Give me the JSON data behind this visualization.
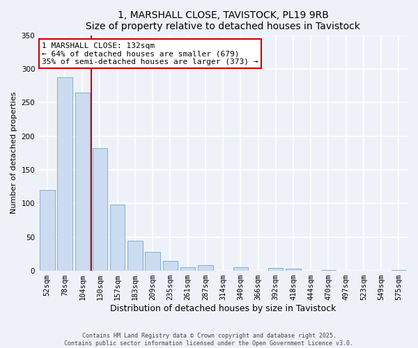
{
  "title": "1, MARSHALL CLOSE, TAVISTOCK, PL19 9RB",
  "subtitle": "Size of property relative to detached houses in Tavistock",
  "xlabel": "Distribution of detached houses by size in Tavistock",
  "ylabel": "Number of detached properties",
  "bin_labels": [
    "52sqm",
    "78sqm",
    "104sqm",
    "130sqm",
    "157sqm",
    "183sqm",
    "209sqm",
    "235sqm",
    "261sqm",
    "287sqm",
    "314sqm",
    "340sqm",
    "366sqm",
    "392sqm",
    "418sqm",
    "444sqm",
    "470sqm",
    "497sqm",
    "523sqm",
    "549sqm",
    "575sqm"
  ],
  "bar_values": [
    120,
    287,
    265,
    182,
    98,
    45,
    28,
    15,
    5,
    8,
    0,
    5,
    0,
    4,
    3,
    0,
    1,
    0,
    0,
    0,
    1
  ],
  "bar_color": "#ccdcf0",
  "bar_edge_color": "#8ab4d8",
  "vline_x_idx": 3,
  "vline_color": "#cc0000",
  "annotation_title": "1 MARSHALL CLOSE: 132sqm",
  "annotation_line1": "← 64% of detached houses are smaller (679)",
  "annotation_line2": "35% of semi-detached houses are larger (373) →",
  "annotation_box_facecolor": "#ffffff",
  "annotation_box_edgecolor": "#cc0000",
  "ylim": [
    0,
    350
  ],
  "yticks": [
    0,
    50,
    100,
    150,
    200,
    250,
    300,
    350
  ],
  "footer1": "Contains HM Land Registry data © Crown copyright and database right 2025.",
  "footer2": "Contains public sector information licensed under the Open Government Licence v3.0.",
  "bg_color": "#eef2f8",
  "grid_color": "#ffffff",
  "title_fontsize": 10,
  "ylabel_fontsize": 8,
  "xlabel_fontsize": 9,
  "tick_fontsize": 7.5,
  "annot_fontsize": 8
}
